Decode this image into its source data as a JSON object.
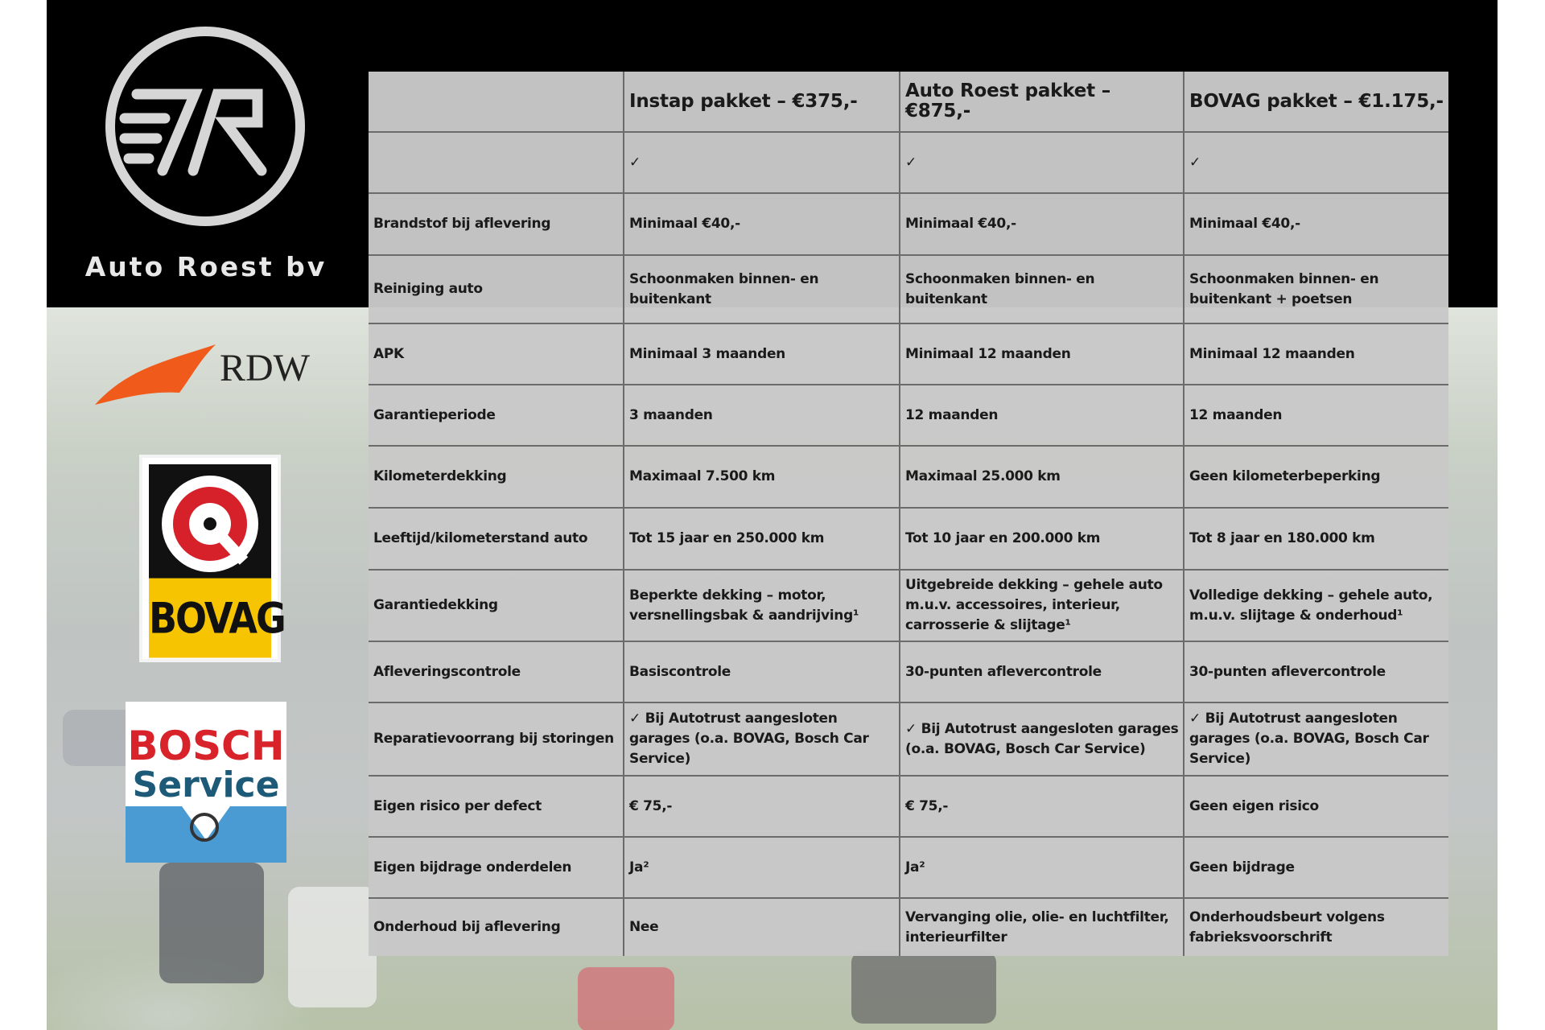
{
  "brand": {
    "name": "Auto Roest bv",
    "logo_text": "R"
  },
  "partner_logos": {
    "rdw": "RDW",
    "bovag": "BOVAG",
    "bosch_1": "BOSCH",
    "bosch_2": "Service"
  },
  "colors": {
    "table_bg": "#c8c8c8",
    "header_bg": "#000000",
    "bovag_yellow": "#f6c400",
    "bosch_red": "#d8232a",
    "rdw_orange": "#f05a1a"
  },
  "table": {
    "headers": [
      "",
      "Instap pakket – €375,-",
      "Auto Roest pakket – €875,-",
      "BOVAG pakket – €1.175,-"
    ],
    "rows": [
      [
        "",
        "✓",
        "✓",
        "✓"
      ],
      [
        "Brandstof bij aflevering",
        "Minimaal €40,-",
        "Minimaal €40,-",
        "Minimaal €40,-"
      ],
      [
        "Reiniging auto",
        "Schoonmaken binnen- en buitenkant",
        "Schoonmaken binnen- en buitenkant",
        "Schoonmaken binnen- en buitenkant + poetsen"
      ],
      [
        "APK",
        "Minimaal 3 maanden",
        "Minimaal 12 maanden",
        "Minimaal 12 maanden"
      ],
      [
        "Garantieperiode",
        "3 maanden",
        "12 maanden",
        "12 maanden"
      ],
      [
        "Kilometerdekking",
        "Maximaal 7.500 km",
        "Maximaal 25.000 km",
        "Geen kilometerbeperking"
      ],
      [
        "Leeftijd/kilometerstand auto",
        "Tot 15 jaar en 250.000 km",
        "Tot 10 jaar en 200.000 km",
        "Tot 8 jaar en 180.000 km"
      ],
      [
        "Garantiedekking",
        "Beperkte dekking – motor, versnellingsbak & aandrijving¹",
        "Uitgebreide dekking – gehele auto m.u.v. accessoires, interieur, carrosserie & slijtage¹",
        "Volledige dekking – gehele auto, m.u.v. slijtage & onderhoud¹"
      ],
      [
        "Afleveringscontrole",
        "Basiscontrole",
        "30-punten aflevercontrole",
        "30-punten aflevercontrole"
      ],
      [
        "Reparatievoorrang bij storingen",
        "✓ Bij Autotrust aangesloten garages (o.a. BOVAG, Bosch Car Service)",
        "✓ Bij Autotrust aangesloten garages (o.a. BOVAG, Bosch Car Service)",
        "✓ Bij Autotrust aangesloten garages (o.a. BOVAG, Bosch Car Service)"
      ],
      [
        "Eigen risico per defect",
        "€ 75,-",
        "€ 75,-",
        "Geen eigen risico"
      ],
      [
        "Eigen bijdrage onderdelen",
        "Ja²",
        "Ja²",
        "Geen bijdrage"
      ],
      [
        "Onderhoud bij aflevering",
        "Nee",
        "Vervanging olie, olie- en luchtfilter, interieurfilter",
        "Onderhoudsbeurt volgens fabrieksvoorschrift"
      ]
    ]
  }
}
